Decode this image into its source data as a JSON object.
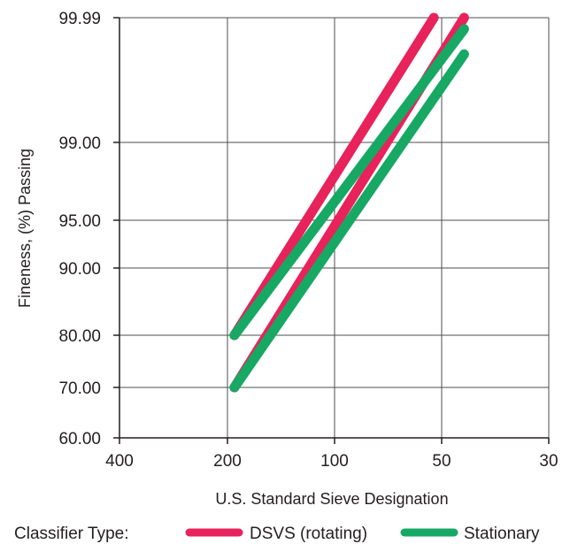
{
  "chart_data": {
    "type": "line",
    "title": "",
    "xlabel": "U.S. Standard Sieve Designation",
    "ylabel": "Fineness, (%) Passing",
    "x_ticks": [
      "400",
      "200",
      "100",
      "50",
      "30"
    ],
    "y_ticks": [
      "60.00",
      "70.00",
      "80.00",
      "90.00",
      "95.00",
      "99.00",
      "99.99"
    ],
    "grid": true,
    "legend_title": "Classifier Type:",
    "legend_position": "bottom",
    "series": [
      {
        "name": "DSVS (rotating)",
        "color": "#e8225a",
        "points": [
          [
            200,
            80.0
          ],
          [
            60,
            99.99
          ]
        ]
      },
      {
        "name": "DSVS (rotating)",
        "color": "#e8225a",
        "points": [
          [
            200,
            70.0
          ],
          [
            50,
            99.99
          ]
        ]
      },
      {
        "name": "Stationary",
        "color": "#17a864",
        "points": [
          [
            200,
            80.0
          ],
          [
            50,
            99.9
          ]
        ]
      },
      {
        "name": "Stationary",
        "color": "#17a864",
        "points": [
          [
            200,
            70.0
          ],
          [
            50,
            99.7
          ]
        ]
      }
    ],
    "legend": [
      {
        "name": "DSVS (rotating)",
        "color": "#e8225a"
      },
      {
        "name": "Stationary",
        "color": "#17a864"
      }
    ]
  }
}
